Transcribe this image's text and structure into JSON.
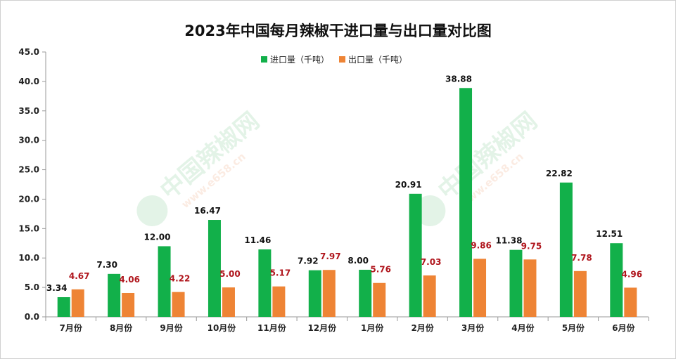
{
  "chart_data": {
    "type": "bar",
    "title": "2023年中国每月辣椒干进口量与出口量对比图",
    "categories": [
      "7月份",
      "8月份",
      "9月份",
      "10月份",
      "11月份",
      "12月份",
      "1月份",
      "2月份",
      "3月份",
      "4月份",
      "5月份",
      "6月份"
    ],
    "series": [
      {
        "name": "进口量（千吨）",
        "color": "#12b04a",
        "label_color": "#111111",
        "values": [
          3.34,
          7.3,
          12.0,
          16.47,
          11.46,
          7.92,
          8.0,
          20.91,
          38.88,
          11.38,
          22.82,
          12.51
        ],
        "labels": [
          "3.34",
          "7.30",
          "12.00",
          "16.47",
          "11.46",
          "7.92",
          "8.00",
          "20.91",
          "38.88",
          "11.38",
          "22.82",
          "12.51"
        ]
      },
      {
        "name": "出口量（千吨）",
        "color": "#ee8435",
        "label_color": "#b0161d",
        "values": [
          4.67,
          4.06,
          4.22,
          5.0,
          5.17,
          7.97,
          5.76,
          7.03,
          9.86,
          9.75,
          7.78,
          4.96
        ],
        "labels": [
          "4.67",
          "4.06",
          "4.22",
          "5.00",
          "5.17",
          "7.97",
          "5.76",
          "7.03",
          "9.86",
          "9.75",
          "7.78",
          "4.96"
        ]
      }
    ],
    "ylim": [
      0,
      45
    ],
    "yticks": [
      "0.0",
      "5.0",
      "10.0",
      "15.0",
      "20.0",
      "25.0",
      "30.0",
      "35.0",
      "40.0",
      "45.0"
    ],
    "grid": false,
    "legend_position": "top-center",
    "watermark": [
      "中国辣椒网",
      "www.e658.cn"
    ]
  }
}
